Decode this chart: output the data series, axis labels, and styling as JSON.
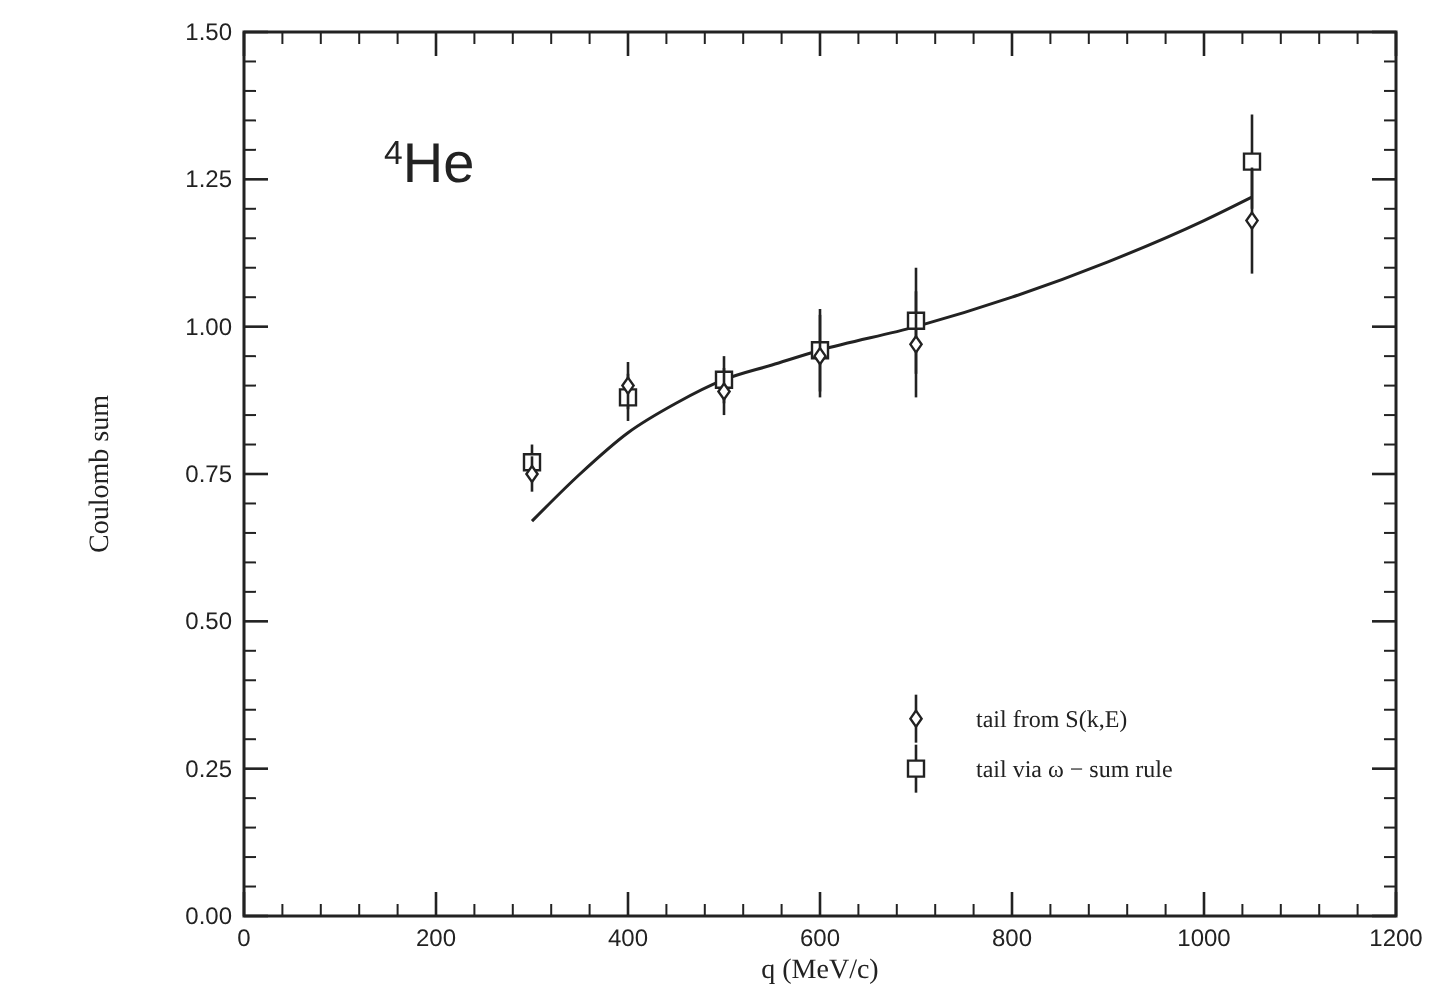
{
  "chart_data": {
    "type": "scatter",
    "xlabel": "q (MeV/c)",
    "ylabel": "Coulomb sum",
    "xlim": [
      0,
      1200
    ],
    "ylim": [
      0,
      1.5
    ],
    "xticks": [
      0,
      200,
      400,
      600,
      800,
      1000,
      1200
    ],
    "yticks": [
      {
        "value": 0,
        "label": "0.00"
      },
      {
        "value": 0.25,
        "label": "0.25"
      },
      {
        "value": 0.5,
        "label": "0.50"
      },
      {
        "value": 0.75,
        "label": "0.75"
      },
      {
        "value": 1,
        "label": "1.00"
      },
      {
        "value": 1.25,
        "label": "1.25"
      },
      {
        "value": 1.5,
        "label": "1.50"
      }
    ],
    "annotations": [
      "$^{4}$He"
    ],
    "legend": "bottom right",
    "grid": false,
    "series": [
      {
        "name": "tail from S(k,E)",
        "color": "#222222",
        "marker": "diamond",
        "x": [
          300,
          400,
          500,
          600,
          700,
          1050
        ],
        "values": [
          0.75,
          0.9,
          0.89,
          0.95,
          0.97,
          1.18
        ],
        "errors": [
          0.03,
          0.04,
          0.04,
          0.07,
          0.09,
          0.09
        ]
      },
      {
        "name": "tail via ω − sum rule",
        "color": "#222222",
        "marker": "square",
        "x": [
          300,
          400,
          500,
          600,
          700,
          1050
        ],
        "values": [
          0.77,
          0.88,
          0.91,
          0.96,
          1.01,
          1.28
        ],
        "errors": [
          0.03,
          0.04,
          0.04,
          0.07,
          0.09,
          0.08
        ]
      },
      {
        "type": "line",
        "color": "#222222",
        "line_style": "solid",
        "marker": "none",
        "x": [
          300,
          350,
          400,
          450,
          500,
          550,
          600,
          700,
          800,
          900,
          1000,
          1050
        ],
        "values": [
          0.67,
          0.75,
          0.82,
          0.87,
          0.91,
          0.935,
          0.96,
          1.0,
          1.05,
          1.11,
          1.18,
          1.22
        ]
      }
    ]
  }
}
